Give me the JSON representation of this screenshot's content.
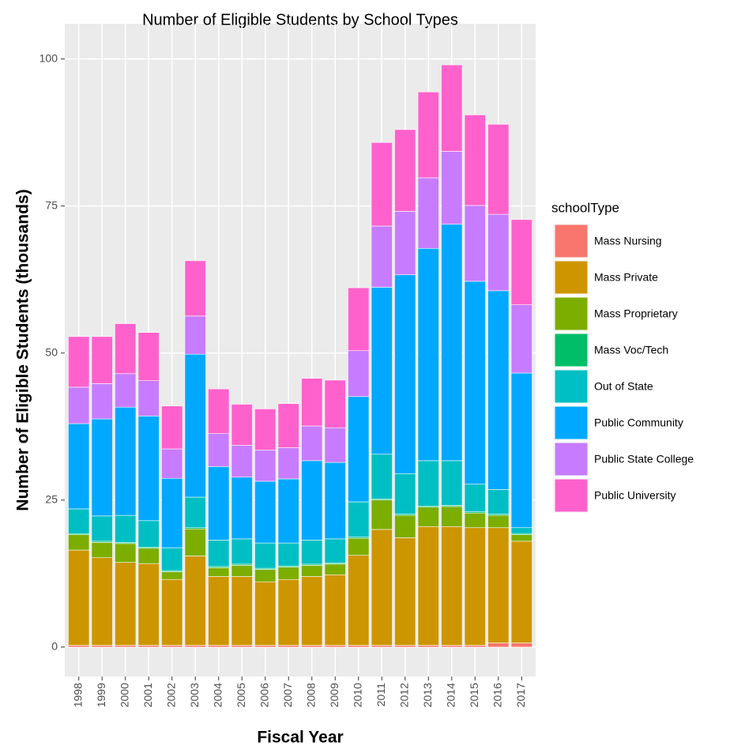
{
  "chart_data": {
    "type": "stacked_bar",
    "title": "Number of Eligible Students by School Types",
    "x_label": "Fiscal Year",
    "y_label": "Number of Eligible Students (thousands)",
    "legend_title": "schoolType",
    "legend_position": "right",
    "grid": true,
    "categories": [
      "1998",
      "1999",
      "2000",
      "2001",
      "2002",
      "2003",
      "2004",
      "2005",
      "2006",
      "2007",
      "2008",
      "2009",
      "2010",
      "2011",
      "2012",
      "2013",
      "2014",
      "2015",
      "2016",
      "2017"
    ],
    "ylim": [
      -5,
      106
    ],
    "yticks": [
      0,
      25,
      50,
      75,
      100
    ],
    "series": [
      {
        "name": "Mass Nursing",
        "color": "#F8766D",
        "values": [
          0.3,
          0.3,
          0.3,
          0.3,
          0.3,
          0.3,
          0.3,
          0.3,
          0.3,
          0.3,
          0.3,
          0.3,
          0.3,
          0.3,
          0.3,
          0.3,
          0.3,
          0.3,
          0.7,
          0.7
        ]
      },
      {
        "name": "Mass Private",
        "color": "#CD9600",
        "values": [
          16.2,
          14.9,
          14.1,
          13.9,
          11.2,
          15.2,
          11.7,
          11.7,
          10.8,
          11.2,
          11.7,
          12,
          15.3,
          19.7,
          18.3,
          20.2,
          20.2,
          20,
          19.6,
          17.3
        ]
      },
      {
        "name": "Mass Proprietary",
        "color": "#7CAE00",
        "values": [
          2.6,
          2.6,
          3.2,
          2.6,
          1.3,
          4.6,
          1.5,
          1.9,
          2.1,
          2.1,
          1.9,
          1.8,
          2.9,
          5,
          3.8,
          3.3,
          3.4,
          2.5,
          2.1,
          1.1
        ]
      },
      {
        "name": "Mass Voc/Tech",
        "color": "#00BE67",
        "values": [
          0.2,
          0.2,
          0.2,
          0.2,
          0.2,
          0.2,
          0.2,
          0.2,
          0.2,
          0.2,
          0.2,
          0.2,
          0.2,
          0.2,
          0.2,
          0.2,
          0.2,
          0.2,
          0.2,
          0.2
        ]
      },
      {
        "name": "Out of State",
        "color": "#00BFC4",
        "values": [
          4.2,
          4.3,
          4.6,
          4.5,
          3.9,
          5.2,
          4.5,
          4.3,
          4.3,
          3.9,
          4.1,
          4.1,
          6,
          7.6,
          6.9,
          7.7,
          7.6,
          4.7,
          4.2,
          1
        ]
      },
      {
        "name": "Public Community",
        "color": "#00A9FF",
        "values": [
          14.5,
          16.5,
          18.4,
          17.8,
          11.8,
          24.3,
          12.5,
          10.5,
          10.5,
          10.9,
          13.5,
          13,
          17.9,
          28.4,
          33.8,
          36.1,
          40.2,
          34.5,
          33.8,
          26.3
        ]
      },
      {
        "name": "Public State College",
        "color": "#C77CFF",
        "values": [
          6.2,
          6,
          5.7,
          6,
          5,
          6.5,
          5.6,
          5.4,
          5.3,
          5.3,
          5.9,
          5.9,
          7.8,
          10.4,
          10.8,
          12,
          12.4,
          12.9,
          13,
          11.6
        ]
      },
      {
        "name": "Public University",
        "color": "#FF61CC",
        "values": [
          8.6,
          8,
          8.5,
          8.2,
          7.3,
          9.4,
          7.6,
          7,
          7,
          7.5,
          8.1,
          8.1,
          10.7,
          14.2,
          13.9,
          14.6,
          14.7,
          15.4,
          15.3,
          14.5
        ]
      }
    ]
  }
}
